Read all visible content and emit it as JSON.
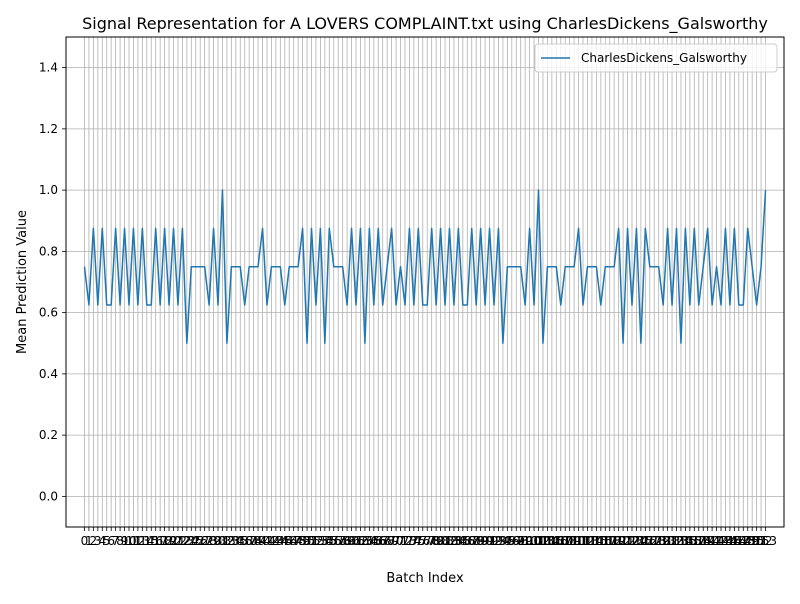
{
  "chart_data": {
    "type": "line",
    "title": "Signal Representation for A LOVERS COMPLAINT.txt using CharlesDickens_Galsworthy",
    "xlabel": "Batch Index",
    "ylabel": "Mean Prediction Value",
    "xlim": [
      -4.15,
      157.15
    ],
    "ylim": [
      -0.1,
      1.5
    ],
    "yticks": [
      0.0,
      0.2,
      0.4,
      0.6,
      0.8,
      1.0,
      1.2,
      1.4
    ],
    "ytick_labels": [
      "0.0",
      "0.2",
      "0.4",
      "0.6",
      "0.8",
      "1.0",
      "1.2",
      "1.4"
    ],
    "grid": true,
    "legend_position": "upper right",
    "colors": {
      "series": "#1f77b4"
    },
    "series": [
      {
        "name": "CharlesDickens_Galsworthy",
        "values": [
          0.75,
          0.625,
          0.875,
          0.625,
          0.875,
          0.625,
          0.625,
          0.875,
          0.625,
          0.875,
          0.625,
          0.875,
          0.625,
          0.875,
          0.625,
          0.625,
          0.875,
          0.625,
          0.875,
          0.625,
          0.875,
          0.625,
          0.875,
          0.5,
          0.75,
          0.75,
          0.75,
          0.75,
          0.625,
          0.875,
          0.625,
          1.0,
          0.5,
          0.75,
          0.75,
          0.75,
          0.625,
          0.75,
          0.75,
          0.75,
          0.875,
          0.625,
          0.75,
          0.75,
          0.75,
          0.625,
          0.75,
          0.75,
          0.75,
          0.875,
          0.5,
          0.875,
          0.625,
          0.875,
          0.5,
          0.875,
          0.75,
          0.75,
          0.75,
          0.625,
          0.875,
          0.625,
          0.875,
          0.5,
          0.875,
          0.625,
          0.875,
          0.625,
          0.75,
          0.875,
          0.625,
          0.75,
          0.625,
          0.875,
          0.625,
          0.875,
          0.625,
          0.625,
          0.875,
          0.625,
          0.875,
          0.625,
          0.875,
          0.625,
          0.875,
          0.625,
          0.625,
          0.875,
          0.625,
          0.875,
          0.625,
          0.875,
          0.625,
          0.875,
          0.5,
          0.75,
          0.75,
          0.75,
          0.75,
          0.625,
          0.875,
          0.625,
          1.0,
          0.5,
          0.75,
          0.75,
          0.75,
          0.625,
          0.75,
          0.75,
          0.75,
          0.875,
          0.625,
          0.75,
          0.75,
          0.75,
          0.625,
          0.75,
          0.75,
          0.75,
          0.875,
          0.5,
          0.875,
          0.625,
          0.875,
          0.5,
          0.875,
          0.75,
          0.75,
          0.75,
          0.625,
          0.875,
          0.625,
          0.875,
          0.5,
          0.875,
          0.625,
          0.875,
          0.625,
          0.75,
          0.875,
          0.625,
          0.75,
          0.625,
          0.875,
          0.625,
          0.875,
          0.625,
          0.625,
          0.875,
          0.75,
          0.625,
          0.75,
          1.0
        ]
      }
    ]
  }
}
